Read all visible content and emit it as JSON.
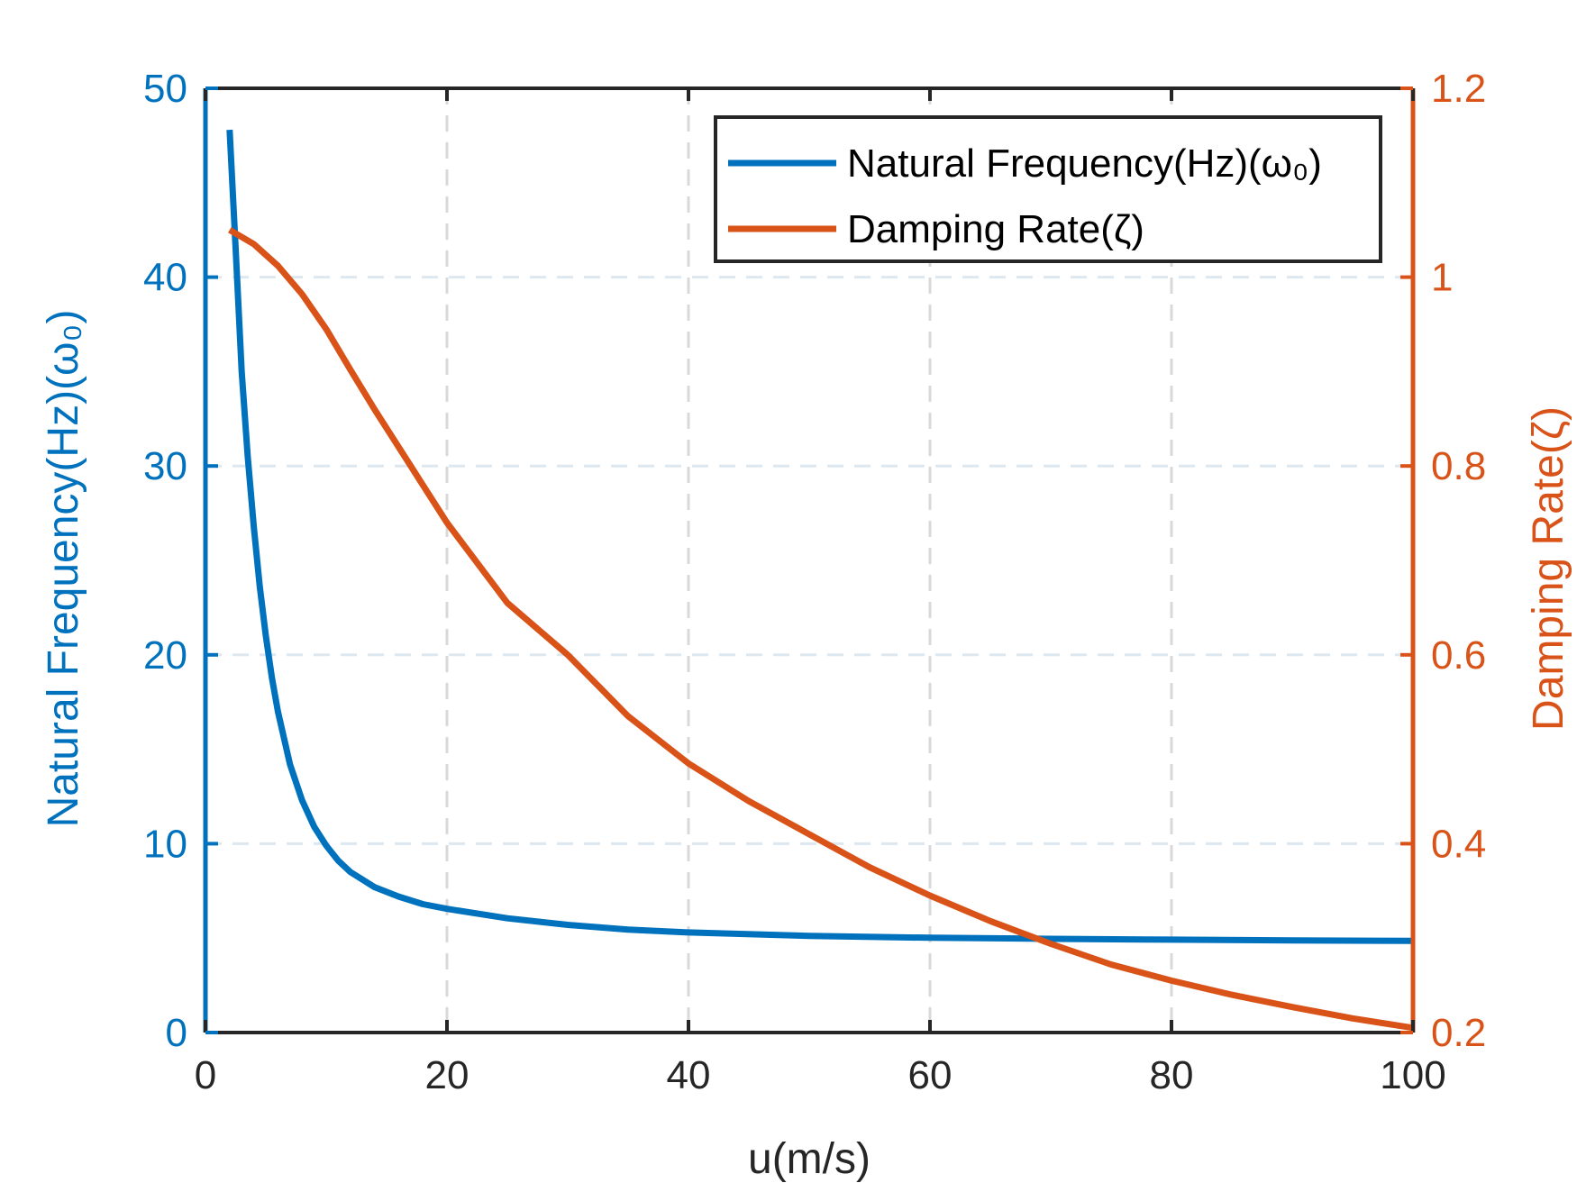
{
  "chart_data": {
    "type": "line",
    "xlabel": "u(m/s)",
    "ylabel_left": "Natural Frequency(Hz)(ω₀)",
    "ylabel_right": "Damping Rate(ζ)",
    "xlim": [
      0,
      100
    ],
    "ylim_left": [
      0,
      50
    ],
    "ylim_right": [
      0.2,
      1.2
    ],
    "x_ticks": [
      "0",
      "20",
      "40",
      "60",
      "80",
      "100"
    ],
    "y_left_ticks": [
      "0",
      "10",
      "20",
      "30",
      "40",
      "50"
    ],
    "y_right_ticks": [
      "0.2",
      "0.4",
      "0.6",
      "0.8",
      "1",
      "1.2"
    ],
    "grid": true,
    "legend_position": "top-right",
    "series": [
      {
        "name": "Natural Frequency(Hz)(ω₀)",
        "axis": "left",
        "color": "#0072BD",
        "x": [
          2,
          2.5,
          3,
          3.5,
          4,
          4.5,
          5,
          5.5,
          6,
          7,
          8,
          9,
          10,
          11,
          12,
          14,
          16,
          18,
          20,
          25,
          30,
          35,
          40,
          50,
          60,
          70,
          80,
          90,
          100
        ],
        "y": [
          47.8,
          41.5,
          35.0,
          30.5,
          26.8,
          23.6,
          21.0,
          18.8,
          17.0,
          14.2,
          12.3,
          10.9,
          9.9,
          9.1,
          8.5,
          7.7,
          7.2,
          6.8,
          6.55,
          6.05,
          5.7,
          5.45,
          5.3,
          5.12,
          5.02,
          4.96,
          4.92,
          4.88,
          4.85
        ]
      },
      {
        "name": "Damping Rate(ζ)",
        "axis": "right",
        "color": "#D95319",
        "x": [
          2,
          4,
          6,
          8,
          10,
          12,
          14,
          16,
          18,
          20,
          25,
          30,
          35,
          40,
          45,
          50,
          55,
          60,
          65,
          70,
          75,
          80,
          85,
          90,
          95,
          100
        ],
        "y": [
          1.05,
          1.035,
          1.012,
          0.982,
          0.945,
          0.902,
          0.86,
          0.82,
          0.78,
          0.74,
          0.655,
          0.6,
          0.535,
          0.485,
          0.445,
          0.41,
          0.375,
          0.345,
          0.318,
          0.294,
          0.272,
          0.255,
          0.24,
          0.227,
          0.215,
          0.205
        ]
      }
    ]
  }
}
